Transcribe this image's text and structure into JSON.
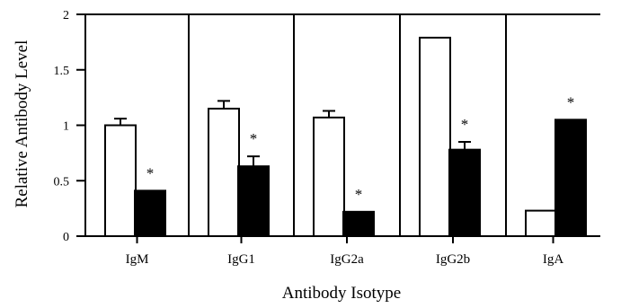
{
  "chart_data": {
    "type": "bar",
    "title": "",
    "xlabel": "Antibody Isotype",
    "ylabel": "Relative Antibody Level",
    "ylim": [
      0,
      2
    ],
    "yticks": [
      0,
      0.5,
      1,
      1.5,
      2
    ],
    "ytick_labels": [
      "0",
      "0.5",
      "1",
      "1.5",
      "2"
    ],
    "categories": [
      "IgM",
      "IgG1",
      "IgG2a",
      "IgG2b",
      "IgA"
    ],
    "series": [
      {
        "color": "#ffffff",
        "values": [
          1.0,
          1.15,
          1.07,
          1.79,
          0.23
        ],
        "errors": [
          0.06,
          0.07,
          0.06,
          0.0,
          0.0
        ]
      },
      {
        "color": "#000000",
        "values": [
          0.41,
          0.63,
          0.22,
          0.78,
          1.05
        ],
        "errors": [
          0.0,
          0.09,
          0.0,
          0.07,
          0.0
        ]
      }
    ],
    "annotations": [
      "*",
      "*",
      "*",
      "*",
      "*"
    ],
    "grid": false,
    "legend": "none"
  }
}
